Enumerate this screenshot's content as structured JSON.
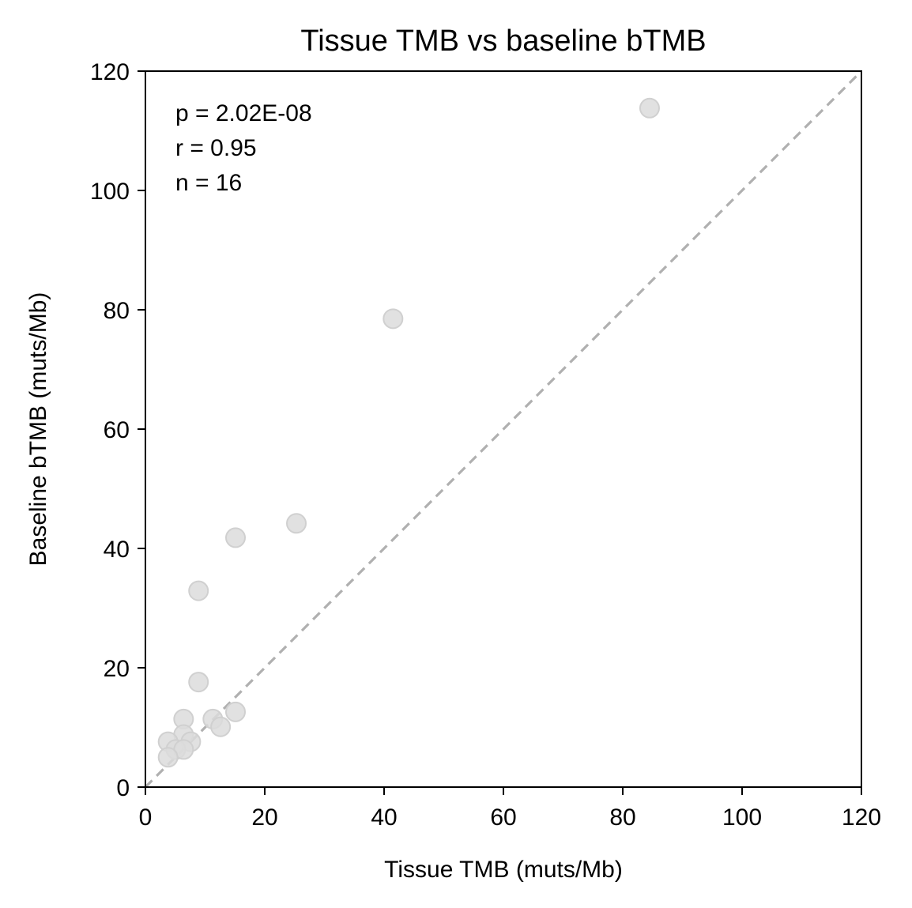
{
  "chart_data": {
    "type": "scatter",
    "title": "Tissue TMB vs baseline bTMB",
    "xlabel": "Tissue TMB (muts/Mb)",
    "ylabel": "Baseline bTMB (muts/Mb)",
    "xlim": [
      0,
      120
    ],
    "ylim": [
      0,
      120
    ],
    "xticks": [
      "0",
      "20",
      "40",
      "60",
      "80",
      "100",
      "120"
    ],
    "yticks": [
      "0",
      "20",
      "40",
      "60",
      "80",
      "100",
      "120"
    ],
    "grid": false,
    "annotations": [
      "p = 2.02E-08",
      "r = 0.95",
      "n = 16"
    ],
    "reference_line": {
      "style": "dashed",
      "from": [
        0,
        0
      ],
      "to": [
        120,
        120
      ]
    },
    "colors": {
      "points": "#dcdcdc",
      "point_edge": "#d0d0d0",
      "reference_line": "#b0b0b0",
      "axes": "#000000"
    },
    "points": [
      {
        "x": 84.5,
        "y": 113.8
      },
      {
        "x": 41.5,
        "y": 78.5
      },
      {
        "x": 25.3,
        "y": 44.2
      },
      {
        "x": 15.1,
        "y": 41.8
      },
      {
        "x": 8.9,
        "y": 32.9
      },
      {
        "x": 8.9,
        "y": 17.6
      },
      {
        "x": 15.1,
        "y": 12.6
      },
      {
        "x": 11.3,
        "y": 11.4
      },
      {
        "x": 12.6,
        "y": 10.1
      },
      {
        "x": 6.4,
        "y": 11.4
      },
      {
        "x": 6.4,
        "y": 8.8
      },
      {
        "x": 7.6,
        "y": 7.6
      },
      {
        "x": 3.8,
        "y": 7.6
      },
      {
        "x": 5.1,
        "y": 6.3
      },
      {
        "x": 6.4,
        "y": 6.3
      },
      {
        "x": 3.8,
        "y": 5.0
      }
    ]
  }
}
